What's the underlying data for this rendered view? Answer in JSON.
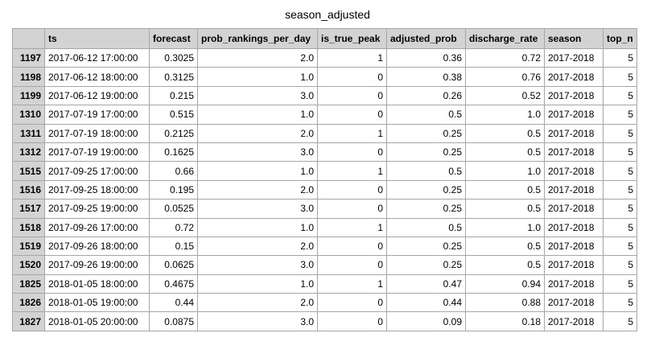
{
  "title": "season_adjusted",
  "chart_data": {
    "type": "table",
    "title": "season_adjusted",
    "columns": [
      "",
      "ts",
      "forecast",
      "prob_rankings_per_day",
      "is_true_peak",
      "adjusted_prob",
      "discharge_rate",
      "season",
      "top_n"
    ],
    "rows": [
      [
        "1197",
        "2017-06-12 17:00:00",
        "0.3025",
        "2.0",
        "1",
        "0.36",
        "0.72",
        "2017-2018",
        "5"
      ],
      [
        "1198",
        "2017-06-12 18:00:00",
        "0.3125",
        "1.0",
        "0",
        "0.38",
        "0.76",
        "2017-2018",
        "5"
      ],
      [
        "1199",
        "2017-06-12 19:00:00",
        "0.215",
        "3.0",
        "0",
        "0.26",
        "0.52",
        "2017-2018",
        "5"
      ],
      [
        "1310",
        "2017-07-19 17:00:00",
        "0.515",
        "1.0",
        "0",
        "0.5",
        "1.0",
        "2017-2018",
        "5"
      ],
      [
        "1311",
        "2017-07-19 18:00:00",
        "0.2125",
        "2.0",
        "1",
        "0.25",
        "0.5",
        "2017-2018",
        "5"
      ],
      [
        "1312",
        "2017-07-19 19:00:00",
        "0.1625",
        "3.0",
        "0",
        "0.25",
        "0.5",
        "2017-2018",
        "5"
      ],
      [
        "1515",
        "2017-09-25 17:00:00",
        "0.66",
        "1.0",
        "1",
        "0.5",
        "1.0",
        "2017-2018",
        "5"
      ],
      [
        "1516",
        "2017-09-25 18:00:00",
        "0.195",
        "2.0",
        "0",
        "0.25",
        "0.5",
        "2017-2018",
        "5"
      ],
      [
        "1517",
        "2017-09-25 19:00:00",
        "0.0525",
        "3.0",
        "0",
        "0.25",
        "0.5",
        "2017-2018",
        "5"
      ],
      [
        "1518",
        "2017-09-26 17:00:00",
        "0.72",
        "1.0",
        "1",
        "0.5",
        "1.0",
        "2017-2018",
        "5"
      ],
      [
        "1519",
        "2017-09-26 18:00:00",
        "0.15",
        "2.0",
        "0",
        "0.25",
        "0.5",
        "2017-2018",
        "5"
      ],
      [
        "1520",
        "2017-09-26 19:00:00",
        "0.0625",
        "3.0",
        "0",
        "0.25",
        "0.5",
        "2017-2018",
        "5"
      ],
      [
        "1825",
        "2018-01-05 18:00:00",
        "0.4675",
        "1.0",
        "1",
        "0.47",
        "0.94",
        "2017-2018",
        "5"
      ],
      [
        "1826",
        "2018-01-05 19:00:00",
        "0.44",
        "2.0",
        "0",
        "0.44",
        "0.88",
        "2017-2018",
        "5"
      ],
      [
        "1827",
        "2018-01-05 20:00:00",
        "0.0875",
        "3.0",
        "0",
        "0.09",
        "0.18",
        "2017-2018",
        "5"
      ]
    ]
  }
}
